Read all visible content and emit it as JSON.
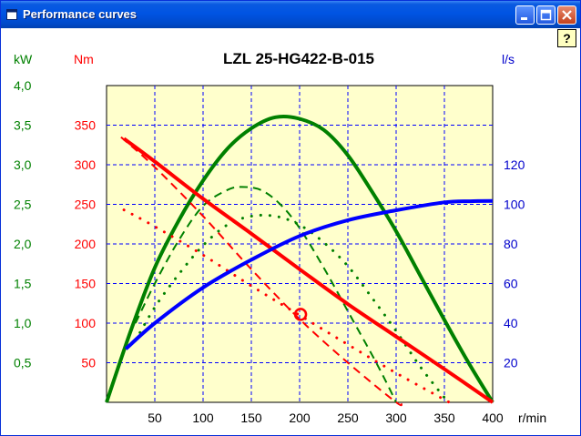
{
  "window": {
    "title": "Performance curves",
    "help_glyph": "?",
    "icons": [
      "app-icon",
      "minimize-icon",
      "maximize-icon",
      "close-icon"
    ]
  },
  "chart_data": {
    "type": "line",
    "title": "LZL 25-HG422-B-015",
    "xlabel": "r/min",
    "xlim": [
      0,
      400
    ],
    "x_ticks": [
      50,
      100,
      150,
      200,
      250,
      300,
      350,
      400
    ],
    "grid": true,
    "background": "#ffffcc",
    "axes": {
      "kw": {
        "unit": "kW",
        "color": "#008000",
        "range": [
          0,
          4.0
        ],
        "ticks": [
          "0,5",
          "1,0",
          "1,5",
          "2,0",
          "2,5",
          "3,0",
          "3,5",
          "4,0"
        ]
      },
      "nm": {
        "unit": "Nm",
        "color": "#ff0000",
        "range": [
          0,
          400
        ],
        "ticks": [
          "50",
          "100",
          "150",
          "200",
          "250",
          "300",
          "350"
        ]
      },
      "ls": {
        "unit": "l/s",
        "color": "#0000cc",
        "range": [
          0,
          160
        ],
        "ticks": [
          "20",
          "40",
          "60",
          "80",
          "100",
          "120"
        ]
      }
    },
    "series": [
      {
        "axis": "kw",
        "color": "#008000",
        "style": "solid",
        "width": 4,
        "x": [
          0,
          25,
          50,
          75,
          100,
          125,
          150,
          175,
          200,
          225,
          250,
          275,
          300,
          325,
          350,
          375,
          400
        ],
        "y": [
          0,
          0.9,
          1.7,
          2.3,
          2.8,
          3.2,
          3.46,
          3.6,
          3.58,
          3.44,
          3.12,
          2.66,
          2.16,
          1.6,
          1.04,
          0.5,
          0
        ]
      },
      {
        "axis": "kw",
        "color": "#008000",
        "style": "dashed",
        "width": 2,
        "x": [
          30,
          50,
          75,
          100,
          125,
          140,
          160,
          180,
          200,
          225,
          250,
          275,
          290,
          300
        ],
        "y": [
          1.0,
          1.5,
          2.05,
          2.48,
          2.68,
          2.72,
          2.68,
          2.5,
          2.2,
          1.7,
          1.15,
          0.6,
          0.25,
          0
        ]
      },
      {
        "axis": "kw",
        "color": "#008000",
        "style": "dotted",
        "width": 3,
        "x": [
          30,
          50,
          75,
          100,
          125,
          150,
          175,
          200,
          225,
          250,
          275,
          300,
          325,
          350,
          355
        ],
        "y": [
          0.78,
          1.2,
          1.62,
          1.98,
          2.24,
          2.35,
          2.35,
          2.24,
          2.02,
          1.72,
          1.32,
          0.9,
          0.45,
          0.06,
          0
        ]
      },
      {
        "axis": "nm",
        "color": "#ff0000",
        "style": "solid",
        "width": 4,
        "x": [
          18,
          50,
          100,
          150,
          200,
          250,
          300,
          350,
          400
        ],
        "y": [
          333,
          304,
          257,
          213,
          168,
          124,
          83,
          42,
          0
        ]
      },
      {
        "axis": "nm",
        "color": "#ff0000",
        "style": "dashed",
        "width": 2,
        "x": [
          15,
          50,
          100,
          150,
          200,
          250,
          300,
          305
        ],
        "y": [
          335,
          297,
          235,
          168,
          105,
          50,
          0,
          0
        ]
      },
      {
        "axis": "nm",
        "color": "#ff0000",
        "style": "dotted",
        "width": 3,
        "x": [
          18,
          50,
          100,
          150,
          200,
          250,
          300,
          355
        ],
        "y": [
          243,
          222,
          186,
          147,
          110,
          73,
          37,
          0
        ]
      },
      {
        "axis": "ls",
        "color": "#0000ff",
        "style": "solid",
        "width": 4,
        "x": [
          20,
          50,
          100,
          150,
          200,
          250,
          300,
          350,
          380,
          400
        ],
        "y": [
          27,
          40,
          58,
          72,
          84,
          92,
          97,
          101,
          101.6,
          101.7
        ]
      }
    ],
    "marker": {
      "axis": "nm",
      "x": 201,
      "y": 111,
      "shape": "circle",
      "color": "#ff0000"
    }
  }
}
